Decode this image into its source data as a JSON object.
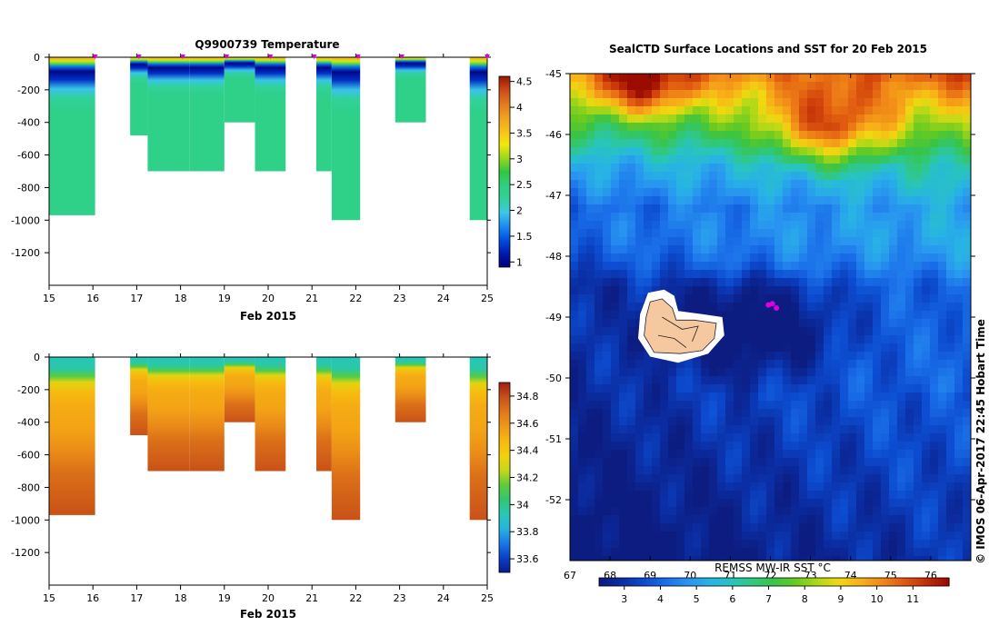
{
  "colors": {
    "temp_scale": [
      "#00007a",
      "#0018b0",
      "#0050e0",
      "#1a8cf5",
      "#3cc8e8",
      "#30d29a",
      "#2ecf80",
      "#30c840",
      "#9ad81e",
      "#f2e80c",
      "#f8c018",
      "#f0a020",
      "#e27820",
      "#cc4a16",
      "#9c1406"
    ],
    "sal_scale": [
      "#0a1a90",
      "#0a40c8",
      "#1a78e8",
      "#26b4e0",
      "#28c8b4",
      "#30c870",
      "#60cc38",
      "#c8d818",
      "#f4d00a",
      "#f8b810",
      "#f09818",
      "#e07818",
      "#c85018",
      "#a02010"
    ],
    "sst_scale": [
      "#0c1c80",
      "#0b2ea4",
      "#0c4cd0",
      "#1a6ee8",
      "#2894f0",
      "#28b2e6",
      "#28c4c0",
      "#30c880",
      "#38c448",
      "#68ca20",
      "#b0d818",
      "#f0d810",
      "#f8b018",
      "#f08818",
      "#e05a10",
      "#c43006",
      "#9a0c00"
    ],
    "marker": "#dd00dd",
    "island": "#f6c8a0"
  },
  "chart_data": [
    {
      "type": "heatmap",
      "title": "Q9900739  Temperature",
      "xlabel": "Feb 2015",
      "ylabel": "",
      "x_ticks": [
        "15",
        "16",
        "17",
        "18",
        "19",
        "20",
        "21",
        "22",
        "23",
        "24",
        "25"
      ],
      "y_ticks": [
        "0",
        "-200",
        "-400",
        "-600",
        "-800",
        "-1000",
        "-1200"
      ],
      "xlim": [
        15,
        25
      ],
      "ylim": [
        -1400,
        0
      ],
      "colorbar": {
        "ticks": [
          "4.5",
          "4",
          "3.5",
          "3",
          "2.5",
          "2",
          "1.5",
          "1"
        ],
        "range": [
          0.9,
          4.6
        ]
      },
      "profiles": [
        {
          "x0": 15.0,
          "x1": 16.05,
          "depth": -970
        },
        {
          "x0": 16.85,
          "x1": 17.25,
          "depth": -480
        },
        {
          "x0": 17.25,
          "x1": 18.2,
          "depth": -700
        },
        {
          "x0": 18.2,
          "x1": 19.0,
          "depth": -700
        },
        {
          "x0": 19.0,
          "x1": 19.7,
          "depth": -400
        },
        {
          "x0": 19.7,
          "x1": 20.4,
          "depth": -700
        },
        {
          "x0": 21.1,
          "x1": 21.45,
          "depth": -700
        },
        {
          "x0": 21.45,
          "x1": 22.1,
          "depth": -1000
        },
        {
          "x0": 22.9,
          "x1": 23.6,
          "depth": -400
        },
        {
          "x0": 24.6,
          "x1": 25.05,
          "depth": -1000
        }
      ],
      "markers": [
        16.05,
        17.05,
        18.05,
        19.05,
        20.05,
        21.05,
        22.05,
        23.05,
        25.05
      ]
    },
    {
      "type": "heatmap",
      "title": "",
      "xlabel": "Feb 2015",
      "ylabel": "",
      "x_ticks": [
        "15",
        "16",
        "17",
        "18",
        "19",
        "20",
        "21",
        "22",
        "23",
        "24",
        "25"
      ],
      "y_ticks": [
        "0",
        "-200",
        "-400",
        "-600",
        "-800",
        "-1000",
        "-1200"
      ],
      "xlim": [
        15,
        25
      ],
      "ylim": [
        -1400,
        0
      ],
      "colorbar": {
        "ticks": [
          "34.8",
          "34.6",
          "34.4",
          "34.2",
          "34",
          "33.8",
          "33.6"
        ],
        "range": [
          33.5,
          34.9
        ]
      },
      "profiles": [
        {
          "x0": 15.0,
          "x1": 16.05,
          "depth": -970
        },
        {
          "x0": 16.85,
          "x1": 17.25,
          "depth": -480
        },
        {
          "x0": 17.25,
          "x1": 18.2,
          "depth": -700
        },
        {
          "x0": 18.2,
          "x1": 19.0,
          "depth": -700
        },
        {
          "x0": 19.0,
          "x1": 19.7,
          "depth": -400
        },
        {
          "x0": 19.7,
          "x1": 20.4,
          "depth": -700
        },
        {
          "x0": 21.1,
          "x1": 21.45,
          "depth": -700
        },
        {
          "x0": 21.45,
          "x1": 22.1,
          "depth": -1000
        },
        {
          "x0": 22.9,
          "x1": 23.6,
          "depth": -400
        },
        {
          "x0": 24.6,
          "x1": 25.05,
          "depth": -1000
        }
      ]
    },
    {
      "type": "heatmap",
      "title": "SealCTD Surface Locations and SST for 20 Feb 2015",
      "x_ticks": [
        "67",
        "68",
        "69",
        "70",
        "71",
        "72",
        "73",
        "74",
        "75",
        "76"
      ],
      "y_ticks": [
        "-45",
        "-46",
        "-47",
        "-48",
        "-49",
        "-50",
        "-51",
        "-52"
      ],
      "xlim": [
        67,
        77
      ],
      "ylim": [
        -53,
        -45
      ],
      "colorbar_label": "REMSS MW-IR SST °C",
      "colorbar_ticks": [
        "3",
        "4",
        "5",
        "6",
        "7",
        "8",
        "9",
        "10",
        "11"
      ],
      "colorbar_range": [
        2.3,
        12.0
      ],
      "points": [
        {
          "lon": 71.95,
          "lat": -48.8
        },
        {
          "lon": 72.05,
          "lat": -48.78
        },
        {
          "lon": 72.15,
          "lat": -48.85
        }
      ]
    }
  ],
  "footer": {
    "timestamp": "© IMOS 06-Apr-2017 22:45 Hobart Time"
  }
}
